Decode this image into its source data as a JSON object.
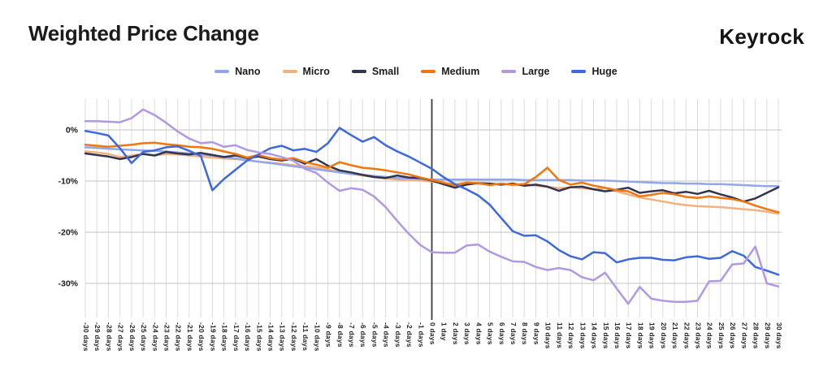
{
  "header": {
    "title": "Weighted Price Change",
    "brand": "Keyrock"
  },
  "chart_data": {
    "type": "line",
    "title": "Weighted Price Change",
    "xlabel": "",
    "ylabel": "",
    "ylim": [
      -36,
      6
    ],
    "grid": "vertical line per day; horizontal lines every 10%",
    "legend_position": "top-center",
    "reference_line_x_label": "0 days",
    "x_days": [
      -30,
      -29,
      -28,
      -27,
      -26,
      -25,
      -24,
      -23,
      -22,
      -21,
      -20,
      -19,
      -18,
      -17,
      -16,
      -15,
      -14,
      -13,
      -12,
      -11,
      -10,
      -9,
      -8,
      -7,
      -6,
      -5,
      -4,
      -3,
      -2,
      -1,
      0,
      1,
      2,
      3,
      4,
      5,
      6,
      7,
      8,
      9,
      10,
      11,
      12,
      13,
      14,
      15,
      16,
      17,
      18,
      19,
      20,
      21,
      22,
      23,
      24,
      25,
      26,
      27,
      28,
      29,
      30
    ],
    "x_tick_labels": [
      "-30 days",
      "-29 days",
      "-28 days",
      "-27 days",
      "-26 days",
      "-25 days",
      "-24 days",
      "-23 days",
      "-22 days",
      "-21 days",
      "-20 days",
      "-19 days",
      "-18 days",
      "-17 days",
      "-16 days",
      "-15 days",
      "-14 days",
      "-13 days",
      "-12 days",
      "-11 days",
      "-10 days",
      "-9 days",
      "-8 days",
      "-7 days",
      "-6 days",
      "-5 days",
      "-4 days",
      "-3 days",
      "-2 days",
      "-1 days",
      "0 days",
      "1 day",
      "2 days",
      "3 days",
      "4 days",
      "5 days",
      "6 days",
      "7 days",
      "8 days",
      "9 days",
      "10 days",
      "11 days",
      "12 days",
      "13 days",
      "14 days",
      "15 days",
      "16 days",
      "17 days",
      "18 days",
      "19 days",
      "20 days",
      "21 days",
      "22 days",
      "23 days",
      "24 days",
      "25 days",
      "26 days",
      "27 days",
      "28 days",
      "29 days",
      "30 days"
    ],
    "y_ticks": [
      {
        "label": "0%",
        "value": 0
      },
      {
        "label": "-10%",
        "value": -10
      },
      {
        "label": "-20%",
        "value": -20
      },
      {
        "label": "-30%",
        "value": -30
      }
    ],
    "series": [
      {
        "name": "Nano",
        "color": "#93A7E8",
        "values": [
          -3.4,
          -3.5,
          -3.7,
          -3.8,
          -3.9,
          -4.0,
          -4.1,
          -4.2,
          -4.4,
          -4.6,
          -4.8,
          -5.0,
          -5.3,
          -5.6,
          -5.9,
          -6.2,
          -6.5,
          -6.8,
          -7.1,
          -7.4,
          -7.7,
          -8.0,
          -8.3,
          -8.6,
          -8.8,
          -9.0,
          -9.2,
          -9.4,
          -9.5,
          -9.6,
          -9.7,
          -9.7,
          -9.7,
          -9.7,
          -9.7,
          -9.7,
          -9.7,
          -9.7,
          -9.8,
          -9.8,
          -9.8,
          -9.8,
          -9.8,
          -9.9,
          -9.9,
          -9.9,
          -10.0,
          -10.1,
          -10.2,
          -10.3,
          -10.4,
          -10.4,
          -10.5,
          -10.5,
          -10.6,
          -10.6,
          -10.7,
          -10.8,
          -10.9,
          -11.0,
          -11.0
        ]
      },
      {
        "name": "Micro",
        "color": "#F2B27F",
        "values": [
          -4.2,
          -4.4,
          -4.7,
          -5.3,
          -5.0,
          -4.7,
          -5.0,
          -4.7,
          -4.8,
          -5.0,
          -5.2,
          -5.4,
          -5.6,
          -5.7,
          -5.9,
          -6.2,
          -6.4,
          -6.6,
          -6.9,
          -7.1,
          -7.3,
          -7.7,
          -8.2,
          -8.6,
          -8.9,
          -9.2,
          -9.5,
          -9.7,
          -9.8,
          -9.9,
          -10.1,
          -10.4,
          -10.6,
          -10.3,
          -10.5,
          -10.7,
          -10.5,
          -10.8,
          -10.6,
          -10.9,
          -11.1,
          -11.4,
          -11.2,
          -11.4,
          -11.6,
          -11.4,
          -12.0,
          -12.6,
          -13.2,
          -13.6,
          -14.0,
          -14.4,
          -14.7,
          -14.9,
          -15.0,
          -15.1,
          -15.3,
          -15.5,
          -15.7,
          -16.0,
          -16.4
        ]
      },
      {
        "name": "Small",
        "color": "#333450",
        "values": [
          -4.6,
          -4.9,
          -5.2,
          -5.7,
          -5.3,
          -4.7,
          -5.0,
          -4.3,
          -4.6,
          -4.8,
          -4.5,
          -4.9,
          -5.3,
          -5.0,
          -5.5,
          -5.2,
          -5.7,
          -6.0,
          -5.6,
          -6.6,
          -5.7,
          -7.0,
          -7.9,
          -8.3,
          -8.8,
          -9.2,
          -9.4,
          -8.9,
          -9.3,
          -9.4,
          -9.9,
          -10.6,
          -11.3,
          -10.7,
          -10.4,
          -10.5,
          -10.7,
          -10.5,
          -10.9,
          -10.7,
          -11.1,
          -11.9,
          -11.2,
          -11.1,
          -11.6,
          -12.0,
          -11.7,
          -11.3,
          -12.3,
          -12.0,
          -11.8,
          -12.4,
          -12.1,
          -12.5,
          -11.9,
          -12.6,
          -13.2,
          -14.0,
          -13.4,
          -12.3,
          -11.2
        ]
      },
      {
        "name": "Medium",
        "color": "#F0770F",
        "values": [
          -2.9,
          -3.1,
          -3.3,
          -3.1,
          -2.9,
          -2.6,
          -2.5,
          -2.8,
          -3.0,
          -3.3,
          -3.4,
          -3.7,
          -4.2,
          -4.7,
          -5.4,
          -4.9,
          -5.5,
          -5.8,
          -5.5,
          -6.3,
          -6.8,
          -7.4,
          -6.3,
          -6.9,
          -7.4,
          -7.6,
          -7.9,
          -8.3,
          -8.7,
          -9.3,
          -9.8,
          -10.3,
          -10.9,
          -10.3,
          -10.4,
          -10.8,
          -10.5,
          -10.7,
          -10.6,
          -9.2,
          -7.4,
          -9.8,
          -10.7,
          -10.3,
          -10.9,
          -11.3,
          -11.8,
          -12.0,
          -13.0,
          -12.7,
          -12.3,
          -12.6,
          -13.1,
          -13.3,
          -13.0,
          -13.3,
          -13.5,
          -14.0,
          -14.8,
          -15.5,
          -16.1
        ]
      },
      {
        "name": "Large",
        "color": "#B199E2",
        "values": [
          1.7,
          1.7,
          1.6,
          1.5,
          2.3,
          4.0,
          2.9,
          1.4,
          -0.3,
          -1.7,
          -2.6,
          -2.4,
          -3.3,
          -3.0,
          -3.9,
          -4.4,
          -4.7,
          -5.3,
          -6.0,
          -7.6,
          -8.4,
          -10.3,
          -11.9,
          -11.4,
          -11.7,
          -13.0,
          -15.1,
          -17.8,
          -20.3,
          -22.5,
          -23.9,
          -24.0,
          -24.0,
          -22.6,
          -22.4,
          -23.8,
          -24.8,
          -25.7,
          -25.8,
          -26.8,
          -27.4,
          -27.0,
          -27.4,
          -28.8,
          -29.4,
          -27.9,
          -31.0,
          -34.0,
          -30.7,
          -33.0,
          -33.4,
          -33.6,
          -33.6,
          -33.4,
          -29.6,
          -29.5,
          -26.3,
          -26.1,
          -22.8,
          -30.0,
          -30.6
        ]
      },
      {
        "name": "Huge",
        "color": "#3D68DF",
        "values": [
          -0.2,
          -0.6,
          -1.1,
          -3.6,
          -6.5,
          -4.3,
          -4.0,
          -3.4,
          -3.2,
          -4.1,
          -5.1,
          -11.8,
          -9.6,
          -7.8,
          -6.0,
          -4.8,
          -3.6,
          -3.1,
          -4.0,
          -3.7,
          -4.3,
          -2.6,
          0.4,
          -1.0,
          -2.3,
          -1.4,
          -3.0,
          -4.2,
          -5.2,
          -6.4,
          -7.6,
          -9.2,
          -10.6,
          -11.6,
          -12.8,
          -14.6,
          -17.2,
          -19.8,
          -20.7,
          -20.6,
          -21.8,
          -23.5,
          -24.7,
          -25.3,
          -23.9,
          -24.1,
          -25.9,
          -25.3,
          -25.0,
          -25.0,
          -25.4,
          -25.5,
          -24.9,
          -24.7,
          -25.2,
          -25.0,
          -23.7,
          -24.6,
          -26.8,
          -27.5,
          -28.3
        ]
      }
    ]
  }
}
